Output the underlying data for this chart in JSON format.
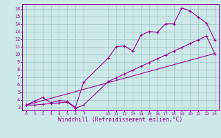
{
  "xlabel": "Windchill (Refroidissement éolien,°C)",
  "bg_color": "#cce8e8",
  "grid_color": "#aacccc",
  "line_color": "#990099",
  "xlim_min": -0.5,
  "xlim_max": 23.5,
  "ylim_min": 2.6,
  "ylim_max": 16.6,
  "xticks": [
    0,
    1,
    2,
    3,
    4,
    5,
    6,
    7,
    10,
    11,
    12,
    13,
    14,
    15,
    16,
    17,
    18,
    19,
    20,
    21,
    22,
    23
  ],
  "yticks": [
    3,
    4,
    5,
    6,
    7,
    8,
    9,
    10,
    11,
    12,
    13,
    14,
    15,
    16
  ],
  "line1_x": [
    0,
    1,
    2,
    3,
    4,
    5,
    6,
    7,
    10,
    11,
    12,
    13,
    14,
    15,
    16,
    17,
    18,
    19,
    20,
    21,
    22,
    23
  ],
  "line1_y": [
    3.3,
    3.8,
    4.3,
    3.6,
    3.9,
    3.8,
    3.0,
    6.3,
    9.5,
    11.0,
    11.1,
    10.4,
    12.5,
    13.0,
    12.9,
    14.0,
    14.0,
    16.1,
    15.7,
    14.9,
    14.1,
    11.9
  ],
  "line2_x": [
    0,
    1,
    2,
    3,
    4,
    5,
    6,
    7,
    10,
    11,
    12,
    13,
    14,
    15,
    16,
    17,
    18,
    19,
    20,
    21,
    22,
    23
  ],
  "line2_y": [
    3.3,
    3.3,
    3.4,
    3.5,
    3.6,
    3.7,
    2.9,
    3.3,
    6.4,
    6.9,
    7.4,
    7.9,
    8.4,
    8.9,
    9.4,
    9.9,
    10.4,
    10.9,
    11.4,
    11.9,
    12.4,
    10.1
  ],
  "line3_x": [
    0,
    23
  ],
  "line3_y": [
    3.3,
    10.1
  ]
}
